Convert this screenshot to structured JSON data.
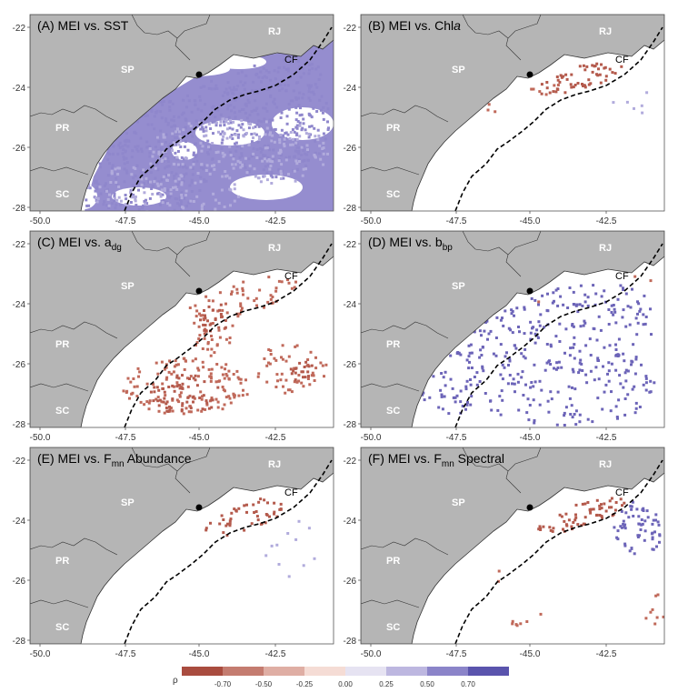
{
  "panels": [
    {
      "id": "A",
      "title_prefix": "(A) MEI vs. ",
      "title_main": "SST",
      "title_sub": "",
      "title_after": "",
      "pattern": "sst"
    },
    {
      "id": "B",
      "title_prefix": "(B) MEI vs. ",
      "title_main": "Chl",
      "title_italic": "a",
      "title_sub": "",
      "title_after": "",
      "pattern": "chla"
    },
    {
      "id": "C",
      "title_prefix": "(C) MEI vs. ",
      "title_main": "a",
      "title_sub": "dg",
      "title_after": "",
      "pattern": "adg"
    },
    {
      "id": "D",
      "title_prefix": "(D) MEI vs. ",
      "title_main": "b",
      "title_sub": "bp",
      "title_after": "",
      "pattern": "bbp"
    },
    {
      "id": "E",
      "title_prefix": "(E) MEI vs. ",
      "title_main": "F",
      "title_sub": "mn",
      "title_after": " Abundance",
      "pattern": "abund"
    },
    {
      "id": "F",
      "title_prefix": "(F) MEI vs. ",
      "title_main": "F",
      "title_sub": "mn",
      "title_after": " Spectral",
      "pattern": "spectral"
    }
  ],
  "state_labels": [
    "RJ",
    "SP",
    "PR",
    "SC"
  ],
  "feature_label": "CF",
  "x_ticks": [
    "-50.0",
    "-47.5",
    "-45.0",
    "-42.5"
  ],
  "y_ticks": [
    "-22",
    "-24",
    "-26",
    "-28"
  ],
  "legend": {
    "symbol": "ρ",
    "ticks": [
      "-0.70",
      "-0.50",
      "-0.25",
      "0.00",
      "0.25",
      "0.50",
      "0.70"
    ],
    "colors": [
      "#a94c3f",
      "#c47c70",
      "#dfaea4",
      "#f5dcd5",
      "#e6e3f2",
      "#bdb7e0",
      "#8b84c9",
      "#5a54ad"
    ]
  },
  "colors": {
    "land": "#b5b5b5",
    "coast": "#333333",
    "negative": "#c0695a",
    "negative_dark": "#b45a4c",
    "positive": "#8f87cc",
    "positive_dark": "#6c64b8",
    "positive_light": "#b1abdc"
  }
}
